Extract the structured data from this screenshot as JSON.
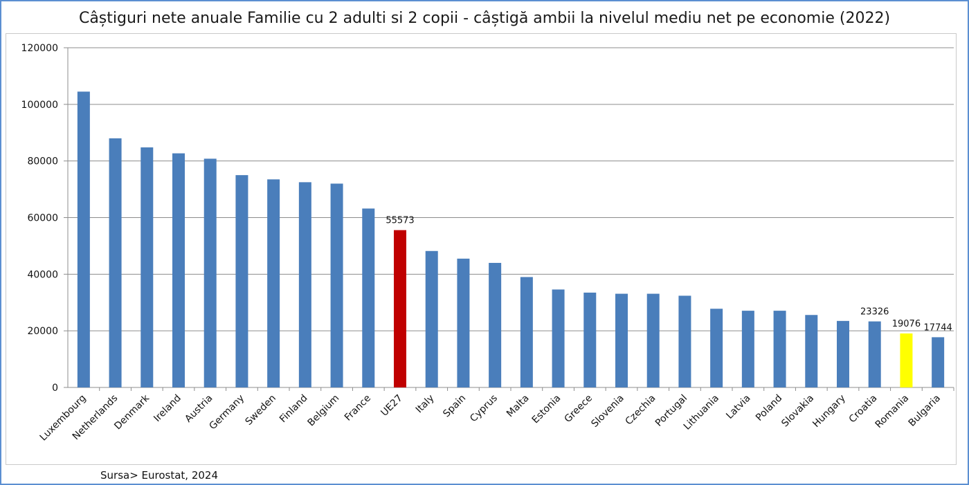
{
  "chart_data": {
    "type": "bar",
    "title": "Câștiguri nete anuale Familie cu 2 adulti si 2 copii - câștigă ambii la nivelul mediu net pe economie (2022)",
    "xlabel": "",
    "ylabel": "",
    "ylim": [
      0,
      120000
    ],
    "yticks": [
      0,
      20000,
      40000,
      60000,
      80000,
      100000,
      120000
    ],
    "grid": true,
    "legend": "none",
    "categories": [
      "Luxembourg",
      "Netherlands",
      "Denmark",
      "Ireland",
      "Austria",
      "Germany",
      "Sweden",
      "Finland",
      "Belgium",
      "France",
      "UE27",
      "Italy",
      "Spain",
      "Cyprus",
      "Malta",
      "Estonia",
      "Greece",
      "Slovenia",
      "Czechia",
      "Portugal",
      "Lithuania",
      "Latvia",
      "Poland",
      "Slovakia",
      "Hungary",
      "Croatia",
      "Romania",
      "Bulgaria"
    ],
    "values": [
      104500,
      88000,
      84800,
      82700,
      80800,
      75000,
      73500,
      72500,
      72000,
      63200,
      55573,
      48200,
      45500,
      44000,
      39000,
      34600,
      33500,
      33100,
      33100,
      32400,
      27800,
      27100,
      27100,
      25600,
      23500,
      23326,
      19076,
      17744
    ],
    "data_labels": [
      {
        "category": "UE27",
        "text": "55573"
      },
      {
        "category": "Croatia",
        "text": "23326"
      },
      {
        "category": "Romania",
        "text": "19076"
      },
      {
        "category": "Bulgaria",
        "text": "17744"
      }
    ],
    "colors": {
      "default": "#4a7ebb",
      "highlight": {
        "UE27": "#c00000",
        "Romania": "#ffff00"
      },
      "grid": "#8c8c8c",
      "frame": "#5b8fd1"
    },
    "source": "Sursa> Eurostat, 2024"
  }
}
